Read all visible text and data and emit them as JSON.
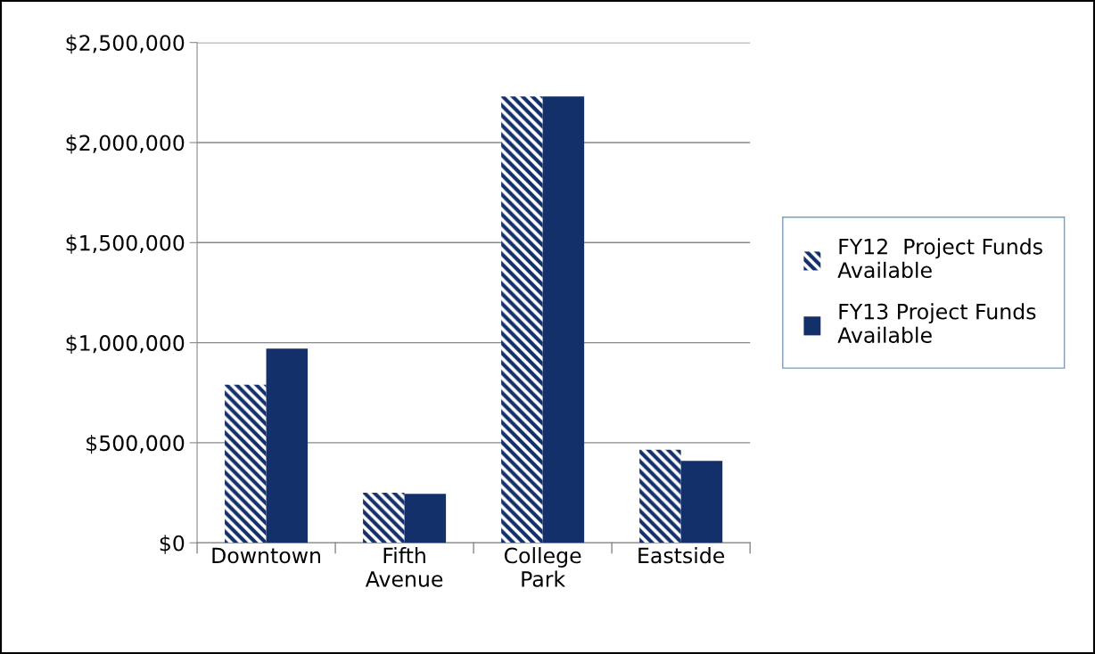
{
  "chart_data": {
    "type": "bar",
    "categories": [
      "Downtown",
      "Fifth Avenue",
      "College Park",
      "Eastside"
    ],
    "series": [
      {
        "name": "FY12  Project Funds Available",
        "color": "#14306a",
        "values": [
          790000,
          250000,
          2230000,
          465000
        ]
      },
      {
        "name": "FY13 Project Funds Available",
        "color": "#14306a",
        "values": [
          970000,
          245000,
          2230000,
          410000
        ]
      }
    ],
    "ylim": [
      0,
      2500000
    ],
    "yticks": [
      {
        "value": 0,
        "label": "$0"
      },
      {
        "value": 500000,
        "label": "$500,000"
      },
      {
        "value": 1000000,
        "label": "$1,000,000"
      },
      {
        "value": 1500000,
        "label": "$1,500,000"
      },
      {
        "value": 2000000,
        "label": "$2,000,000"
      },
      {
        "value": 2500000,
        "label": "$2,500,000"
      }
    ],
    "grid": "y",
    "legend": "right"
  }
}
